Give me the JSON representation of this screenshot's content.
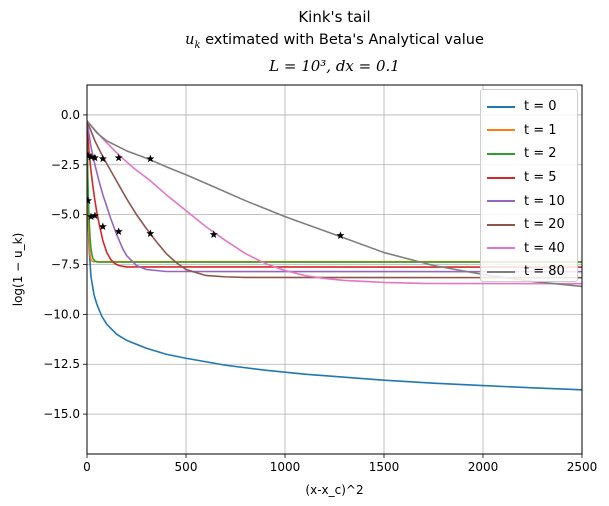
{
  "title": {
    "line1": "Kink's tail",
    "line2_var": "u",
    "line2_sub": "k",
    "line2_rest": " extimated with Beta's Analytical value",
    "line3": "L = 10³, dx = 0.1"
  },
  "chart_data": {
    "type": "line",
    "title": "Kink's tail / u_k extimated with Beta's Analytical value / L = 10^3, dx = 0.1",
    "xlabel": "(x-x_c)^2",
    "ylabel": "log(1 − u_k)",
    "xlim": [
      0,
      2500
    ],
    "ylim": [
      -17.0,
      1.5
    ],
    "xticks": [
      0,
      500,
      1000,
      1500,
      2000,
      2500
    ],
    "xtick_labels": [
      "0",
      "500",
      "1000",
      "1500",
      "2000",
      "2500"
    ],
    "yticks": [
      0.0,
      -2.5,
      -5.0,
      -7.5,
      -10.0,
      -12.5,
      -15.0
    ],
    "ytick_labels": [
      "0.0",
      "−2.5",
      "−5.0",
      "−7.5",
      "−10.0",
      "−12.5",
      "−15.0"
    ],
    "grid": true,
    "legend_position": "top-right",
    "series": [
      {
        "name": "t = 0",
        "color": "#1f77b4",
        "x": [
          0,
          2,
          5,
          10,
          20,
          35,
          50,
          75,
          100,
          150,
          200,
          300,
          400,
          500,
          700,
          900,
          1100,
          1300,
          1500,
          1750,
          2000,
          2250,
          2500
        ],
        "y": [
          -0.4,
          -2.5,
          -4.8,
          -6.6,
          -8.1,
          -9.0,
          -9.5,
          -10.1,
          -10.5,
          -11.0,
          -11.3,
          -11.7,
          -12.0,
          -12.2,
          -12.55,
          -12.8,
          -13.0,
          -13.15,
          -13.3,
          -13.45,
          -13.57,
          -13.68,
          -13.78
        ]
      },
      {
        "name": "t = 1",
        "color": "#ff7f0e",
        "x": [
          0,
          2,
          5,
          8,
          12,
          16,
          20,
          25,
          30,
          40,
          2500
        ],
        "y": [
          -0.3,
          -2.1,
          -4.2,
          -5.6,
          -6.6,
          -7.05,
          -7.25,
          -7.33,
          -7.35,
          -7.36,
          -7.36
        ]
      },
      {
        "name": "t = 2",
        "color": "#2ca02c",
        "x": [
          0,
          2,
          5,
          10,
          15,
          20,
          25,
          30,
          40,
          50,
          60,
          2500
        ],
        "y": [
          -0.3,
          -1.9,
          -3.5,
          -5.1,
          -6.1,
          -6.7,
          -7.0,
          -7.2,
          -7.33,
          -7.37,
          -7.38,
          -7.38
        ]
      },
      {
        "name": "t = 5",
        "color": "#d62728",
        "x": [
          0,
          10,
          20,
          30,
          40,
          50,
          60,
          80,
          100,
          120,
          140,
          160,
          200,
          2500
        ],
        "y": [
          -0.3,
          -1.8,
          -2.8,
          -3.6,
          -4.3,
          -4.9,
          -5.4,
          -6.3,
          -6.9,
          -7.25,
          -7.45,
          -7.55,
          -7.62,
          -7.63
        ]
      },
      {
        "name": "t = 10",
        "color": "#9467bd",
        "x": [
          0,
          20,
          40,
          60,
          80,
          100,
          120,
          150,
          180,
          200,
          250,
          300,
          400,
          2500
        ],
        "y": [
          -0.3,
          -1.6,
          -2.5,
          -3.3,
          -4.0,
          -4.6,
          -5.2,
          -6.0,
          -6.7,
          -7.05,
          -7.55,
          -7.75,
          -7.85,
          -7.86
        ]
      },
      {
        "name": "t = 20",
        "color": "#8c564b",
        "x": [
          0,
          40,
          80,
          120,
          160,
          200,
          250,
          300,
          350,
          400,
          450,
          500,
          600,
          700,
          800,
          2500
        ],
        "y": [
          -0.3,
          -1.3,
          -2.1,
          -2.8,
          -3.5,
          -4.2,
          -5.0,
          -5.7,
          -6.35,
          -6.95,
          -7.4,
          -7.75,
          -8.05,
          -8.12,
          -8.15,
          -8.16
        ]
      },
      {
        "name": "t = 40",
        "color": "#e377c2",
        "x": [
          0,
          80,
          160,
          240,
          320,
          400,
          500,
          600,
          700,
          800,
          900,
          1000,
          1100,
          1200,
          1300,
          1500,
          1700,
          2500
        ],
        "y": [
          -0.3,
          -1.2,
          -2.0,
          -2.7,
          -3.3,
          -4.0,
          -4.8,
          -5.6,
          -6.3,
          -6.95,
          -7.45,
          -7.8,
          -8.05,
          -8.2,
          -8.3,
          -8.4,
          -8.45,
          -8.46
        ]
      },
      {
        "name": "t = 80",
        "color": "#7f7f7f",
        "x": [
          0,
          50,
          100,
          200,
          320,
          400,
          500,
          640,
          800,
          1000,
          1280,
          1500,
          1750,
          2000,
          2250,
          2500
        ],
        "y": [
          -0.3,
          -0.9,
          -1.3,
          -1.8,
          -2.25,
          -2.6,
          -3.0,
          -3.6,
          -4.3,
          -5.1,
          -6.1,
          -6.9,
          -7.55,
          -8.0,
          -8.35,
          -8.6
        ]
      }
    ],
    "markers": {
      "symbol": "star",
      "points": [
        {
          "x": 5,
          "y": -2.05
        },
        {
          "x": 5,
          "y": -4.3
        },
        {
          "x": 20,
          "y": -2.1
        },
        {
          "x": 20,
          "y": -5.1
        },
        {
          "x": 40,
          "y": -2.15
        },
        {
          "x": 40,
          "y": -5.05
        },
        {
          "x": 80,
          "y": -2.2
        },
        {
          "x": 80,
          "y": -5.6
        },
        {
          "x": 160,
          "y": -2.15
        },
        {
          "x": 160,
          "y": -5.85
        },
        {
          "x": 320,
          "y": -2.2
        },
        {
          "x": 320,
          "y": -5.95
        },
        {
          "x": 640,
          "y": -6.0
        },
        {
          "x": 1280,
          "y": -6.05
        }
      ]
    }
  }
}
